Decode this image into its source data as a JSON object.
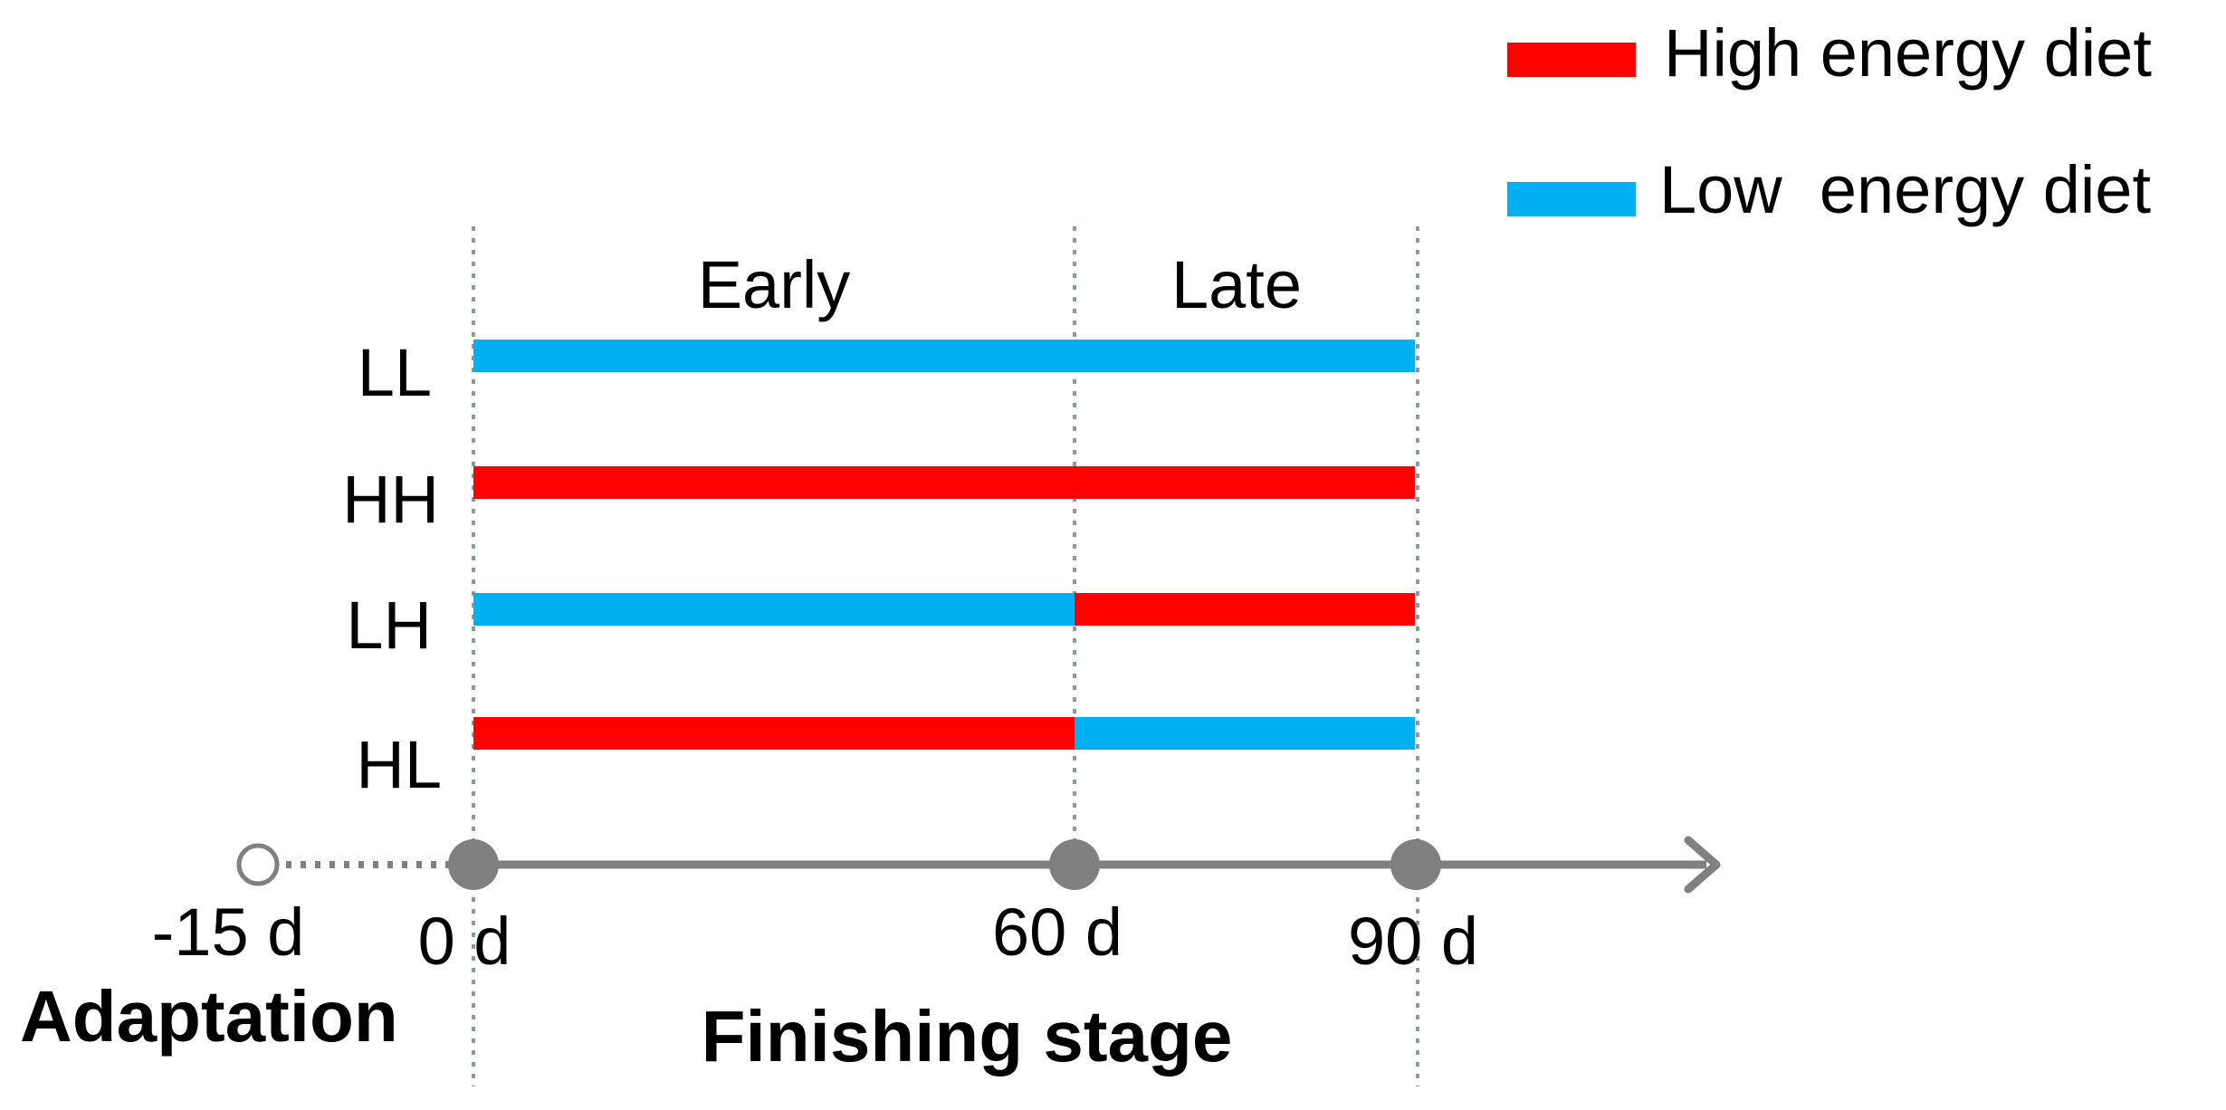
{
  "legend": {
    "items": [
      {
        "label": "High energy diet",
        "color": "#ff0000"
      },
      {
        "label": "Low  energy diet",
        "color": "#00b0f0"
      }
    ]
  },
  "periods": {
    "early": "Early",
    "late": "Late"
  },
  "groups": [
    {
      "label": "LL",
      "early": "low",
      "late": "low"
    },
    {
      "label": "HH",
      "early": "high",
      "late": "high"
    },
    {
      "label": "LH",
      "early": "low",
      "late": "high"
    },
    {
      "label": "HL",
      "early": "high",
      "late": "low"
    }
  ],
  "timeline": {
    "days": [
      -15,
      0,
      60,
      90
    ],
    "tick_labels": [
      "-15 d",
      "0 d",
      "60 d",
      "90 d"
    ]
  },
  "stages": {
    "adaptation": "Adaptation",
    "finishing": "Finishing stage"
  },
  "colors": {
    "high": "#ff0000",
    "low": "#00b0f0",
    "axis": "#808080",
    "guide": "#8a9aa0"
  }
}
